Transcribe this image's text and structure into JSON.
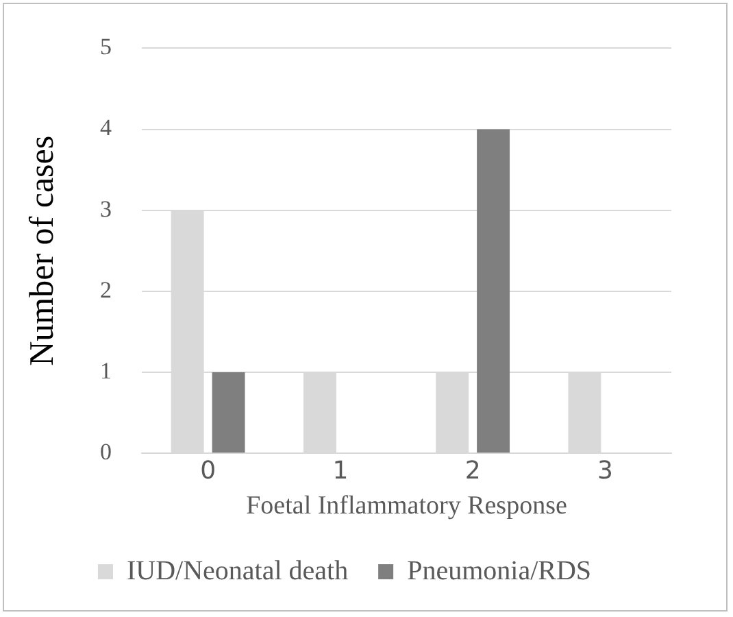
{
  "chart_data": {
    "type": "bar",
    "xlabel": "Foetal Inflammatory Response",
    "ylabel": "Number of cases",
    "categories": [
      "0",
      "1",
      "2",
      "3"
    ],
    "series": [
      {
        "name": "IUD/Neonatal death",
        "color": "#d9d9d9",
        "values": [
          3,
          1,
          1,
          1
        ]
      },
      {
        "name": "Pneumonia/RDS",
        "color": "#7f7f7f",
        "values": [
          1,
          0,
          4,
          0
        ]
      }
    ],
    "ylim": [
      0,
      5
    ],
    "yticks": [
      0,
      1,
      2,
      3,
      4,
      5
    ],
    "grid": "y",
    "legend": "bottom"
  }
}
